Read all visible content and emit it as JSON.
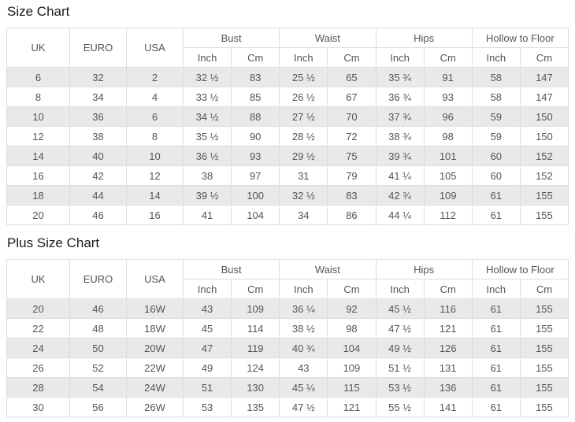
{
  "headers": {
    "uk": "UK",
    "euro": "EURO",
    "usa": "USA",
    "groups": [
      "Bust",
      "Waist",
      "Hips",
      "Hollow to Floor"
    ],
    "sub_inch": "Inch",
    "sub_cm": "Cm"
  },
  "sections": [
    {
      "title": "Size Chart",
      "rows": [
        [
          "6",
          "32",
          "2",
          "32 ½",
          "83",
          "25 ½",
          "65",
          "35 ¾",
          "91",
          "58",
          "147"
        ],
        [
          "8",
          "34",
          "4",
          "33 ½",
          "85",
          "26 ½",
          "67",
          "36 ¾",
          "93",
          "58",
          "147"
        ],
        [
          "10",
          "36",
          "6",
          "34 ½",
          "88",
          "27 ½",
          "70",
          "37 ¾",
          "96",
          "59",
          "150"
        ],
        [
          "12",
          "38",
          "8",
          "35 ½",
          "90",
          "28 ½",
          "72",
          "38 ¾",
          "98",
          "59",
          "150"
        ],
        [
          "14",
          "40",
          "10",
          "36 ½",
          "93",
          "29 ½",
          "75",
          "39 ¾",
          "101",
          "60",
          "152"
        ],
        [
          "16",
          "42",
          "12",
          "38",
          "97",
          "31",
          "79",
          "41 ¼",
          "105",
          "60",
          "152"
        ],
        [
          "18",
          "44",
          "14",
          "39 ½",
          "100",
          "32 ½",
          "83",
          "42 ¾",
          "109",
          "61",
          "155"
        ],
        [
          "20",
          "46",
          "16",
          "41",
          "104",
          "34",
          "86",
          "44 ¼",
          "112",
          "61",
          "155"
        ]
      ]
    },
    {
      "title": "Plus Size Chart",
      "rows": [
        [
          "20",
          "46",
          "16W",
          "43",
          "109",
          "36 ¼",
          "92",
          "45 ½",
          "116",
          "61",
          "155"
        ],
        [
          "22",
          "48",
          "18W",
          "45",
          "114",
          "38 ½",
          "98",
          "47 ½",
          "121",
          "61",
          "155"
        ],
        [
          "24",
          "50",
          "20W",
          "47",
          "119",
          "40 ¾",
          "104",
          "49 ½",
          "126",
          "61",
          "155"
        ],
        [
          "26",
          "52",
          "22W",
          "49",
          "124",
          "43",
          "109",
          "51 ½",
          "131",
          "61",
          "155"
        ],
        [
          "28",
          "54",
          "24W",
          "51",
          "130",
          "45 ¼",
          "115",
          "53 ½",
          "136",
          "61",
          "155"
        ],
        [
          "30",
          "56",
          "26W",
          "53",
          "135",
          "47 ½",
          "121",
          "55 ½",
          "141",
          "61",
          "155"
        ]
      ]
    }
  ],
  "colors": {
    "stripe": "#e9e9e9",
    "border": "#dddddd",
    "text": "#555555",
    "title": "#1b1b1b"
  }
}
